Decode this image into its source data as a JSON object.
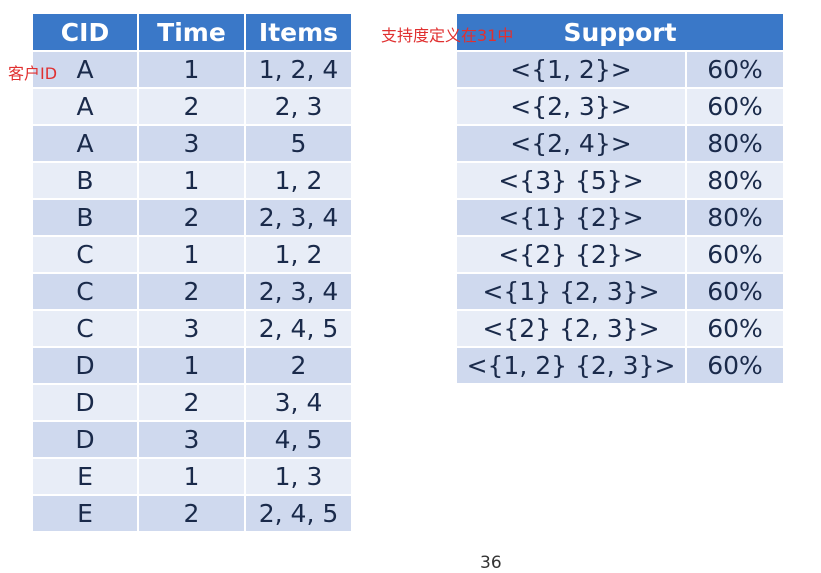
{
  "left_table": {
    "headers": [
      "CID",
      "Time",
      "Items"
    ],
    "rows": [
      [
        "A",
        "1",
        "1, 2, 4"
      ],
      [
        "A",
        "2",
        "2, 3"
      ],
      [
        "A",
        "3",
        "5"
      ],
      [
        "B",
        "1",
        "1, 2"
      ],
      [
        "B",
        "2",
        "2, 3, 4"
      ],
      [
        "C",
        "1",
        "1, 2"
      ],
      [
        "C",
        "2",
        "2, 3, 4"
      ],
      [
        "C",
        "3",
        "2, 4, 5"
      ],
      [
        "D",
        "1",
        "2"
      ],
      [
        "D",
        "2",
        "3, 4"
      ],
      [
        "D",
        "3",
        "4, 5"
      ],
      [
        "E",
        "1",
        "1, 3"
      ],
      [
        "E",
        "2",
        "2, 4, 5"
      ]
    ]
  },
  "right_table": {
    "header": "Support",
    "rows": [
      [
        "<{1, 2}>",
        "60%"
      ],
      [
        "<{2, 3}>",
        "60%"
      ],
      [
        "<{2, 4}>",
        "80%"
      ],
      [
        "<{3} {5}>",
        "80%"
      ],
      [
        "<{1} {2}>",
        "80%"
      ],
      [
        "<{2} {2}>",
        "60%"
      ],
      [
        "<{1} {2, 3}>",
        "60%"
      ],
      [
        "<{2} {2, 3}>",
        "60%"
      ],
      [
        "<{1, 2} {2, 3}>",
        "60%"
      ]
    ]
  },
  "annotations": {
    "cid": "客户ID",
    "support": "支持度定义在31中"
  },
  "page_number": "36",
  "colors": {
    "header": "#3a78c8",
    "row_dark": "#cfd9ee",
    "row_light": "#e8edf7",
    "annotation": "#e03030"
  }
}
